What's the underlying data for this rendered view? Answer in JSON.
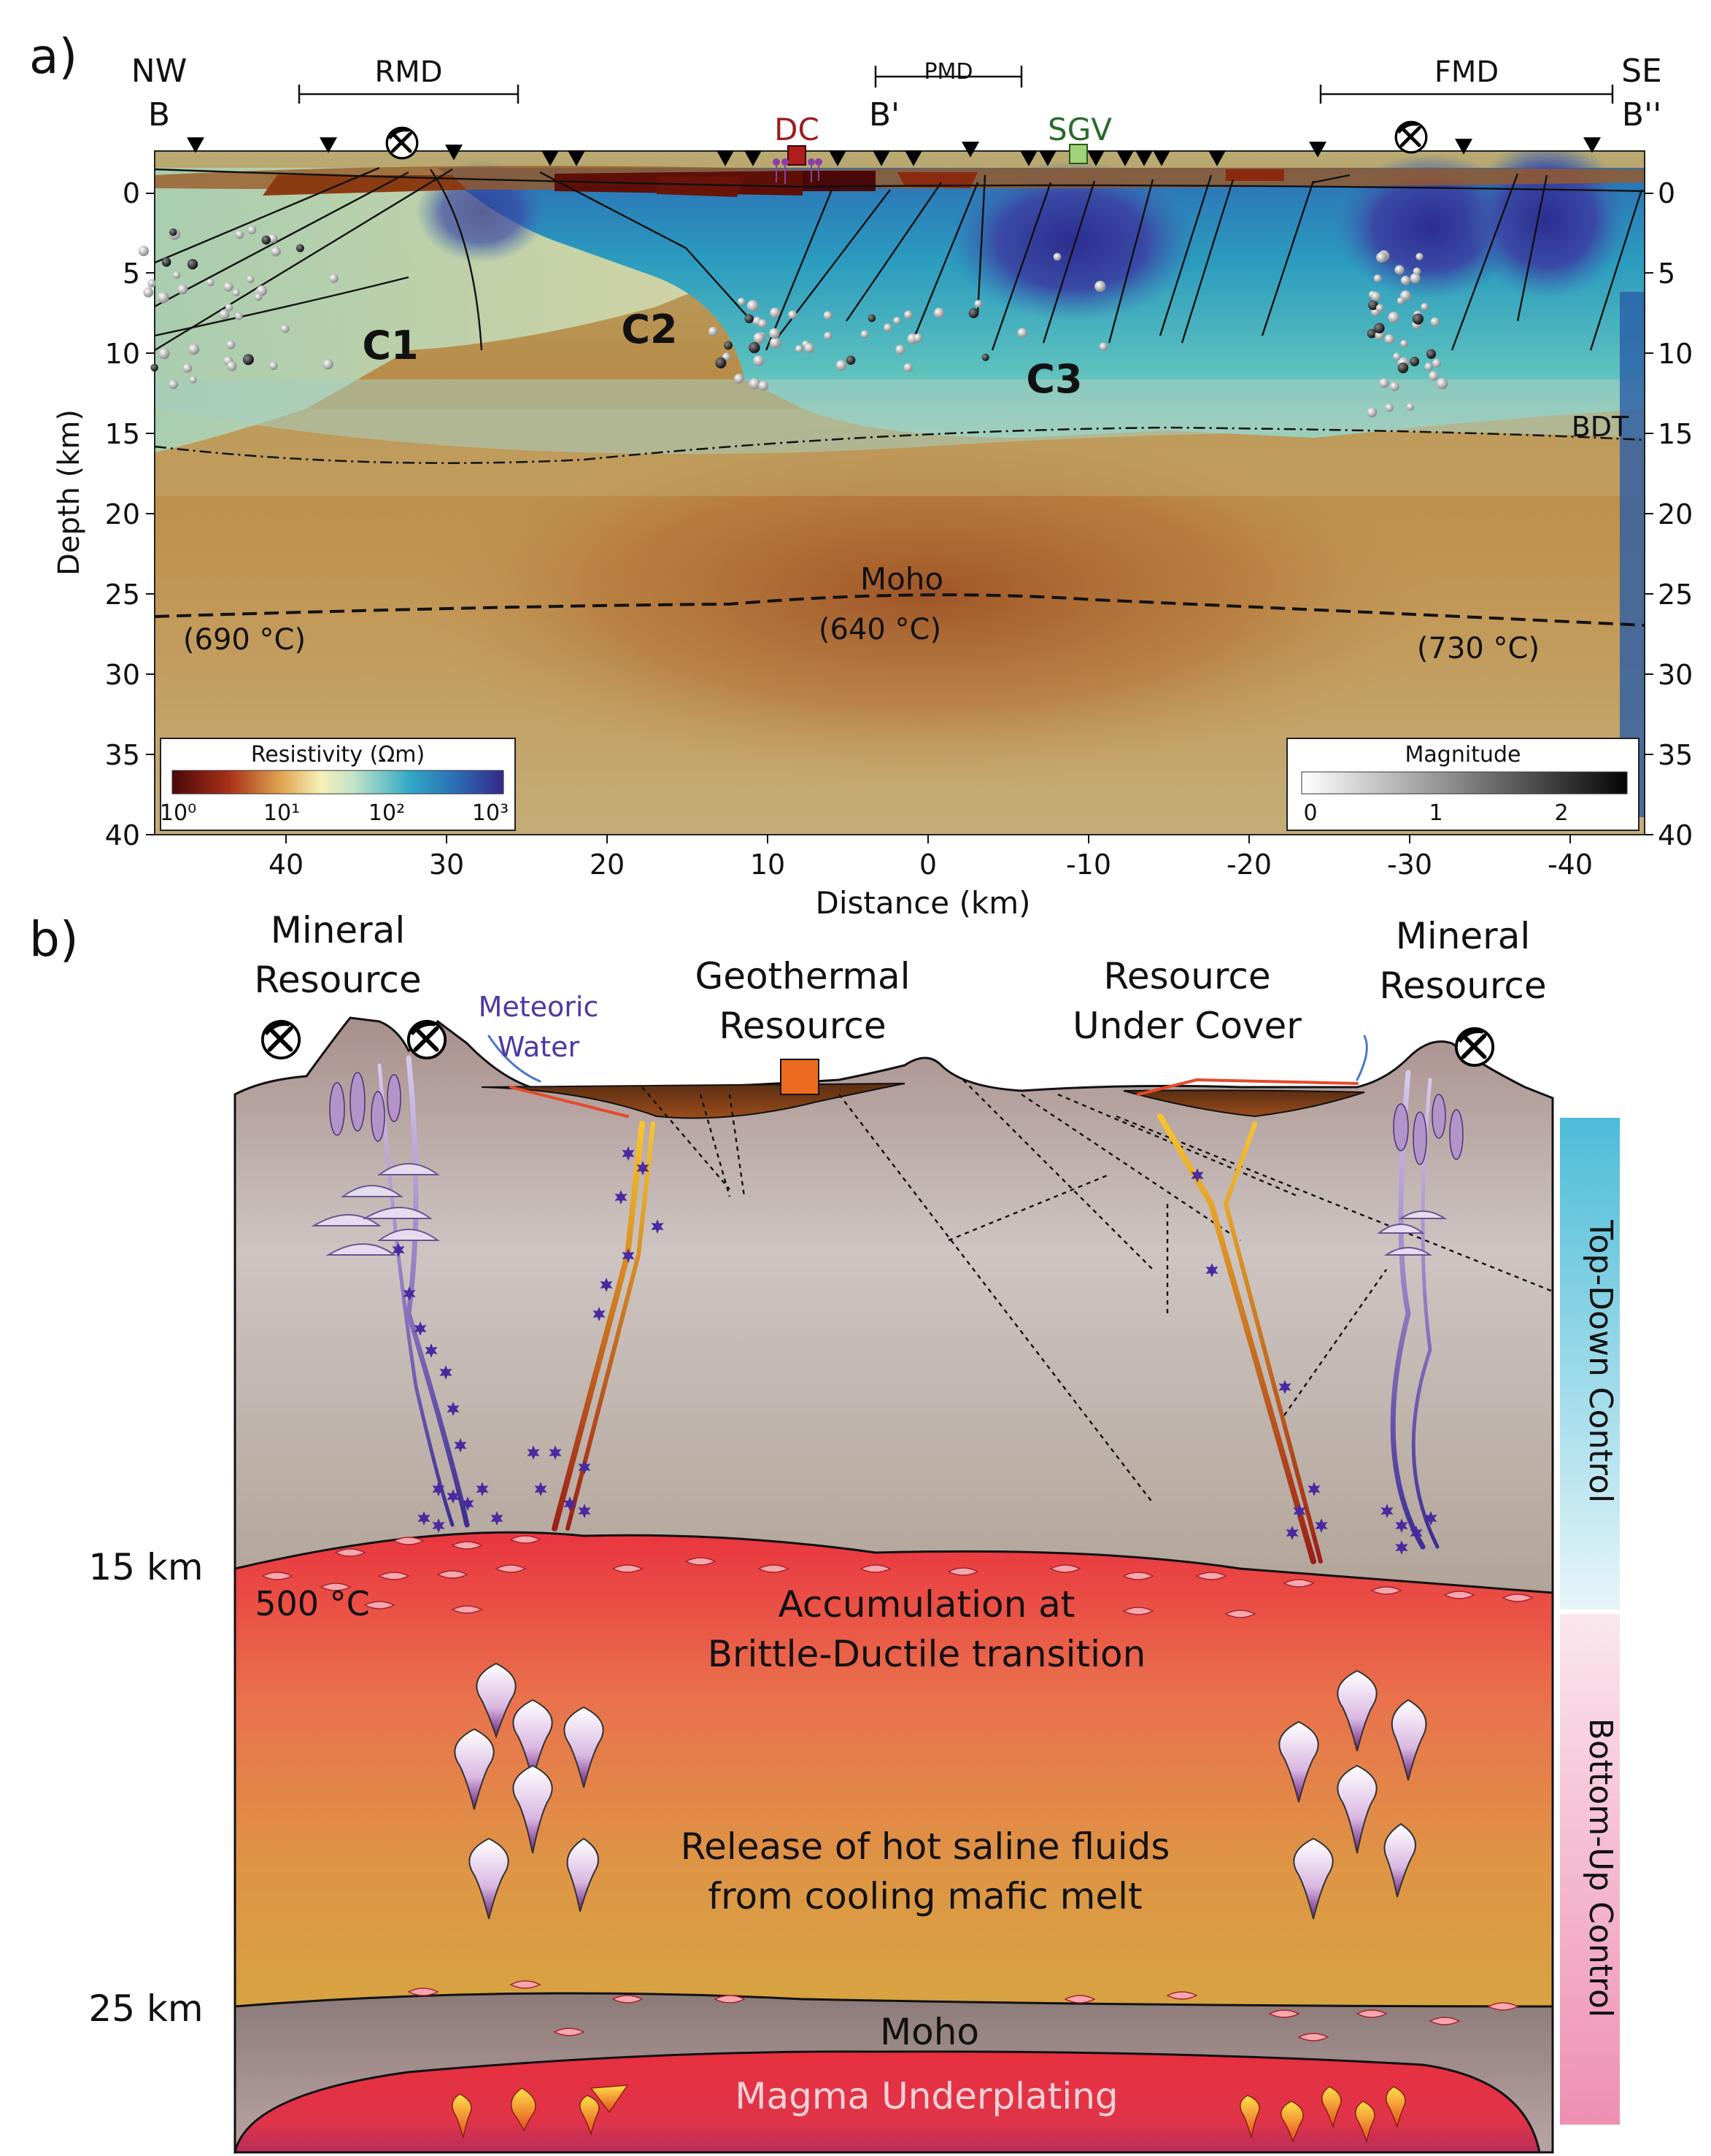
{
  "panel_a": {
    "label": "a)",
    "corner_left": [
      "NW",
      "B"
    ],
    "corner_right": [
      "SE",
      "B''"
    ],
    "b_prime": "B'",
    "domains": [
      "RMD",
      "PMD",
      "FMD"
    ],
    "sites": {
      "dc": "DC",
      "sgv": "SGV"
    },
    "conductors": [
      "C1",
      "C2",
      "C3"
    ],
    "bdt_label": "BDT",
    "moho_label": "Moho",
    "temps": [
      "(690 °C)",
      "(640 °C)",
      "(730 °C)"
    ],
    "y_axis": {
      "label": "Depth (km)",
      "ticks": [
        "0",
        "5",
        "10",
        "15",
        "20",
        "25",
        "30",
        "35",
        "40"
      ]
    },
    "x_axis": {
      "label": "Distance (km)",
      "ticks": [
        "40",
        "30",
        "20",
        "10",
        "0",
        "-10",
        "-20",
        "-30",
        "-40"
      ]
    },
    "resistivity_legend": {
      "title": "Resistivity (Ωm)",
      "ticks": [
        "10⁰",
        "10¹",
        "10²",
        "10³"
      ]
    },
    "magnitude_legend": {
      "title": "Magnitude",
      "ticks": [
        "0",
        "1",
        "2"
      ]
    },
    "colors": {
      "conductive": "#5a0c0a",
      "moderate": "#c99a48",
      "resistive": "#2f3f9e",
      "cyan": "#3aa8c0"
    }
  },
  "panel_b": {
    "label": "b)",
    "mineral_resource_left": [
      "Mineral",
      "Resource"
    ],
    "mineral_resource_right": [
      "Mineral",
      "Resource"
    ],
    "meteoric_water": [
      "Meteoric",
      "Water"
    ],
    "geothermal_resource": [
      "Geothermal",
      "Resource"
    ],
    "resource_under_cover": [
      "Resource",
      "Under Cover"
    ],
    "depth_15": "15 km",
    "depth_25": "25 km",
    "temp_500": "500 °C",
    "accumulation": [
      "Accumulation at",
      "Brittle-Ductile transition"
    ],
    "release": [
      "Release of hot saline fluids",
      "from cooling mafic melt"
    ],
    "moho": "Moho",
    "magma": "Magma Underplating",
    "top_down": "Top-Down Control",
    "bottom_up": "Bottom-Up Control",
    "colors": {
      "upper_crust": "#c4b3ad",
      "melt_zone": "#e8303e",
      "lower_crust": "#d99a45",
      "moho_band": "#a89897",
      "top_bar": "#4cbcd8",
      "bottom_bar": "#f19bb8"
    }
  }
}
